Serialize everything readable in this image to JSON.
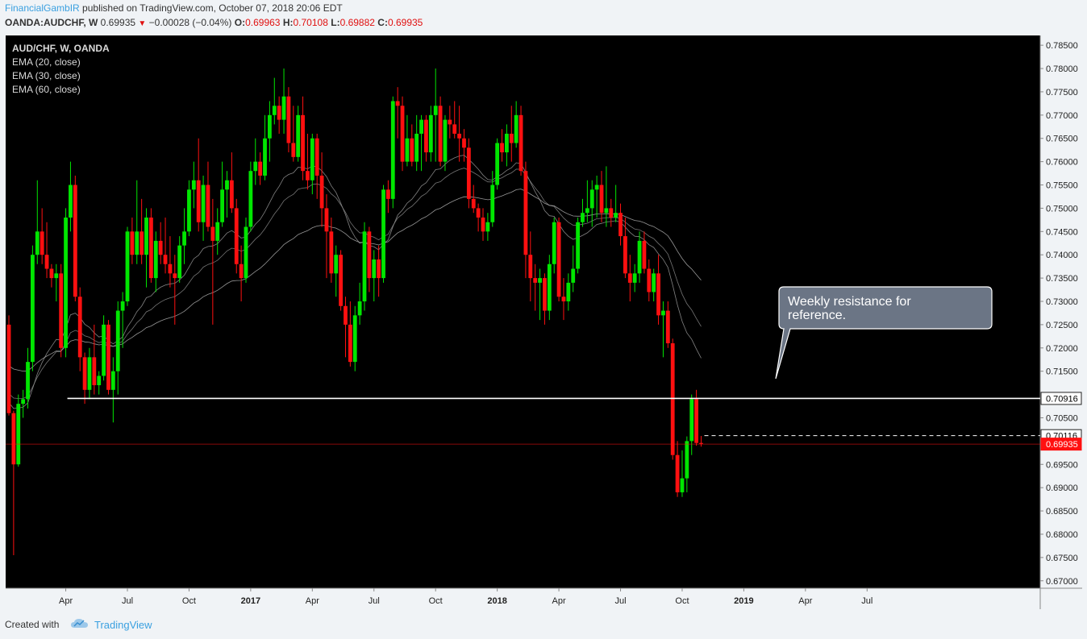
{
  "header": {
    "author": "FinancialGambIR",
    "published_text": "published on TradingView.com, October 07, 2018 20:06 EDT",
    "symbol": "OANDA:AUDCHF, W",
    "price": "0.69935",
    "change_arrow": "▼",
    "change": "−0.00028 (−0.04%)",
    "open_label": "O:",
    "open": "0.69963",
    "high_label": "H:",
    "high": "0.70108",
    "low_label": "L:",
    "low": "0.69882",
    "close_label": "C:",
    "close": "0.69935"
  },
  "legend": {
    "title": "AUD/CHF, W, OANDA",
    "ema20": "EMA (20, close)",
    "ema30": "EMA (30, close)",
    "ema60": "EMA (60, close)"
  },
  "annotation": {
    "text_line1": "Weekly resistance for",
    "text_line2": "reference."
  },
  "footer": {
    "created_with": "Created with",
    "brand": "TradingView"
  },
  "colors": {
    "bull": "#00e600",
    "bear": "#ff1010",
    "background": "#000000",
    "axis_bg": "#f0f3f6",
    "resistance": "#ffffff",
    "current_price": "#ff1010",
    "author": "#3aa0e0"
  },
  "chart_data": {
    "type": "candlestick",
    "title": "AUD/CHF, W, OANDA",
    "ylim": [
      0.6675,
      0.7875
    ],
    "y_ticks": [
      "0.78500",
      "0.78000",
      "0.77500",
      "0.77000",
      "0.76500",
      "0.76000",
      "0.75500",
      "0.75000",
      "0.74500",
      "0.74000",
      "0.73500",
      "0.73000",
      "0.72500",
      "0.72000",
      "0.71500",
      "0.70500",
      "0.69500",
      "0.69000",
      "0.68500",
      "0.68000",
      "0.67500",
      "0.67000"
    ],
    "x_ticks": [
      {
        "label": "Apr",
        "week": 12,
        "bold": false
      },
      {
        "label": "Jul",
        "week": 25,
        "bold": false
      },
      {
        "label": "Oct",
        "week": 38,
        "bold": false
      },
      {
        "label": "2017",
        "week": 51,
        "bold": true
      },
      {
        "label": "Apr",
        "week": 64,
        "bold": false
      },
      {
        "label": "Jul",
        "week": 77,
        "bold": false
      },
      {
        "label": "Oct",
        "week": 90,
        "bold": false
      },
      {
        "label": "2018",
        "week": 103,
        "bold": true
      },
      {
        "label": "Apr",
        "week": 116,
        "bold": false
      },
      {
        "label": "Jul",
        "week": 129,
        "bold": false
      },
      {
        "label": "Oct",
        "week": 142,
        "bold": false
      },
      {
        "label": "2019",
        "week": 155,
        "bold": true
      },
      {
        "label": "Apr",
        "week": 168,
        "bold": false
      },
      {
        "label": "Jul",
        "week": 181,
        "bold": false
      }
    ],
    "week_count": 187,
    "resistance": {
      "value": 0.70916,
      "label": "0.70916",
      "start_week": 12
    },
    "high_marker": {
      "value": 0.70116,
      "label": "0.70116"
    },
    "current": {
      "value": 0.69935,
      "label": "0.69935"
    },
    "candles": [
      {
        "o": 0.725,
        "h": 0.727,
        "l": 0.7055,
        "c": 0.706
      },
      {
        "o": 0.706,
        "h": 0.7065,
        "l": 0.6755,
        "c": 0.695
      },
      {
        "o": 0.695,
        "h": 0.71,
        "l": 0.6945,
        "c": 0.708
      },
      {
        "o": 0.708,
        "h": 0.711,
        "l": 0.705,
        "c": 0.709
      },
      {
        "o": 0.709,
        "h": 0.72,
        "l": 0.707,
        "c": 0.717
      },
      {
        "o": 0.717,
        "h": 0.742,
        "l": 0.715,
        "c": 0.74
      },
      {
        "o": 0.74,
        "h": 0.756,
        "l": 0.738,
        "c": 0.745
      },
      {
        "o": 0.745,
        "h": 0.75,
        "l": 0.738,
        "c": 0.74
      },
      {
        "o": 0.74,
        "h": 0.747,
        "l": 0.735,
        "c": 0.737
      },
      {
        "o": 0.737,
        "h": 0.738,
        "l": 0.733,
        "c": 0.735
      },
      {
        "o": 0.735,
        "h": 0.738,
        "l": 0.73,
        "c": 0.736
      },
      {
        "o": 0.736,
        "h": 0.738,
        "l": 0.718,
        "c": 0.72
      },
      {
        "o": 0.72,
        "h": 0.75,
        "l": 0.718,
        "c": 0.748
      },
      {
        "o": 0.748,
        "h": 0.76,
        "l": 0.745,
        "c": 0.755
      },
      {
        "o": 0.755,
        "h": 0.757,
        "l": 0.73,
        "c": 0.731
      },
      {
        "o": 0.731,
        "h": 0.733,
        "l": 0.715,
        "c": 0.718
      },
      {
        "o": 0.718,
        "h": 0.719,
        "l": 0.708,
        "c": 0.711
      },
      {
        "o": 0.711,
        "h": 0.72,
        "l": 0.709,
        "c": 0.718
      },
      {
        "o": 0.718,
        "h": 0.725,
        "l": 0.71,
        "c": 0.712
      },
      {
        "o": 0.712,
        "h": 0.715,
        "l": 0.71,
        "c": 0.714
      },
      {
        "o": 0.714,
        "h": 0.727,
        "l": 0.713,
        "c": 0.725
      },
      {
        "o": 0.725,
        "h": 0.726,
        "l": 0.71,
        "c": 0.711
      },
      {
        "o": 0.711,
        "h": 0.718,
        "l": 0.704,
        "c": 0.715
      },
      {
        "o": 0.715,
        "h": 0.73,
        "l": 0.71,
        "c": 0.728
      },
      {
        "o": 0.728,
        "h": 0.732,
        "l": 0.72,
        "c": 0.73
      },
      {
        "o": 0.73,
        "h": 0.746,
        "l": 0.729,
        "c": 0.745
      },
      {
        "o": 0.745,
        "h": 0.748,
        "l": 0.738,
        "c": 0.74
      },
      {
        "o": 0.74,
        "h": 0.756,
        "l": 0.738,
        "c": 0.745
      },
      {
        "o": 0.745,
        "h": 0.752,
        "l": 0.738,
        "c": 0.74
      },
      {
        "o": 0.74,
        "h": 0.75,
        "l": 0.733,
        "c": 0.748
      },
      {
        "o": 0.748,
        "h": 0.75,
        "l": 0.734,
        "c": 0.735
      },
      {
        "o": 0.735,
        "h": 0.745,
        "l": 0.732,
        "c": 0.743
      },
      {
        "o": 0.743,
        "h": 0.747,
        "l": 0.738,
        "c": 0.74
      },
      {
        "o": 0.74,
        "h": 0.748,
        "l": 0.736,
        "c": 0.738
      },
      {
        "o": 0.738,
        "h": 0.744,
        "l": 0.733,
        "c": 0.736
      },
      {
        "o": 0.736,
        "h": 0.74,
        "l": 0.725,
        "c": 0.735
      },
      {
        "o": 0.735,
        "h": 0.744,
        "l": 0.734,
        "c": 0.742
      },
      {
        "o": 0.742,
        "h": 0.75,
        "l": 0.738,
        "c": 0.745
      },
      {
        "o": 0.745,
        "h": 0.756,
        "l": 0.744,
        "c": 0.754
      },
      {
        "o": 0.754,
        "h": 0.76,
        "l": 0.75,
        "c": 0.756
      },
      {
        "o": 0.756,
        "h": 0.765,
        "l": 0.745,
        "c": 0.747
      },
      {
        "o": 0.747,
        "h": 0.757,
        "l": 0.743,
        "c": 0.755
      },
      {
        "o": 0.755,
        "h": 0.76,
        "l": 0.745,
        "c": 0.746
      },
      {
        "o": 0.746,
        "h": 0.752,
        "l": 0.725,
        "c": 0.743
      },
      {
        "o": 0.743,
        "h": 0.75,
        "l": 0.74,
        "c": 0.747
      },
      {
        "o": 0.747,
        "h": 0.76,
        "l": 0.746,
        "c": 0.754
      },
      {
        "o": 0.754,
        "h": 0.758,
        "l": 0.748,
        "c": 0.756
      },
      {
        "o": 0.756,
        "h": 0.762,
        "l": 0.749,
        "c": 0.75
      },
      {
        "o": 0.75,
        "h": 0.752,
        "l": 0.736,
        "c": 0.738
      },
      {
        "o": 0.738,
        "h": 0.742,
        "l": 0.73,
        "c": 0.735
      },
      {
        "o": 0.735,
        "h": 0.748,
        "l": 0.734,
        "c": 0.746
      },
      {
        "o": 0.746,
        "h": 0.76,
        "l": 0.745,
        "c": 0.758
      },
      {
        "o": 0.758,
        "h": 0.765,
        "l": 0.755,
        "c": 0.76
      },
      {
        "o": 0.76,
        "h": 0.762,
        "l": 0.755,
        "c": 0.757
      },
      {
        "o": 0.757,
        "h": 0.77,
        "l": 0.756,
        "c": 0.765
      },
      {
        "o": 0.765,
        "h": 0.773,
        "l": 0.76,
        "c": 0.77
      },
      {
        "o": 0.77,
        "h": 0.778,
        "l": 0.768,
        "c": 0.772
      },
      {
        "o": 0.772,
        "h": 0.774,
        "l": 0.766,
        "c": 0.769
      },
      {
        "o": 0.769,
        "h": 0.78,
        "l": 0.766,
        "c": 0.774
      },
      {
        "o": 0.774,
        "h": 0.776,
        "l": 0.762,
        "c": 0.764
      },
      {
        "o": 0.764,
        "h": 0.772,
        "l": 0.76,
        "c": 0.761
      },
      {
        "o": 0.761,
        "h": 0.772,
        "l": 0.76,
        "c": 0.77
      },
      {
        "o": 0.77,
        "h": 0.774,
        "l": 0.756,
        "c": 0.758
      },
      {
        "o": 0.758,
        "h": 0.766,
        "l": 0.754,
        "c": 0.756
      },
      {
        "o": 0.756,
        "h": 0.766,
        "l": 0.753,
        "c": 0.765
      },
      {
        "o": 0.765,
        "h": 0.766,
        "l": 0.752,
        "c": 0.757
      },
      {
        "o": 0.757,
        "h": 0.762,
        "l": 0.746,
        "c": 0.75
      },
      {
        "o": 0.75,
        "h": 0.753,
        "l": 0.735,
        "c": 0.745
      },
      {
        "o": 0.745,
        "h": 0.748,
        "l": 0.734,
        "c": 0.736
      },
      {
        "o": 0.736,
        "h": 0.742,
        "l": 0.731,
        "c": 0.74
      },
      {
        "o": 0.74,
        "h": 0.741,
        "l": 0.728,
        "c": 0.729
      },
      {
        "o": 0.729,
        "h": 0.731,
        "l": 0.718,
        "c": 0.725
      },
      {
        "o": 0.725,
        "h": 0.73,
        "l": 0.716,
        "c": 0.717
      },
      {
        "o": 0.717,
        "h": 0.729,
        "l": 0.715,
        "c": 0.727
      },
      {
        "o": 0.727,
        "h": 0.734,
        "l": 0.725,
        "c": 0.73
      },
      {
        "o": 0.73,
        "h": 0.747,
        "l": 0.728,
        "c": 0.745
      },
      {
        "o": 0.745,
        "h": 0.746,
        "l": 0.732,
        "c": 0.735
      },
      {
        "o": 0.735,
        "h": 0.741,
        "l": 0.73,
        "c": 0.739
      },
      {
        "o": 0.739,
        "h": 0.742,
        "l": 0.731,
        "c": 0.735
      },
      {
        "o": 0.735,
        "h": 0.755,
        "l": 0.734,
        "c": 0.754
      },
      {
        "o": 0.754,
        "h": 0.756,
        "l": 0.749,
        "c": 0.752
      },
      {
        "o": 0.752,
        "h": 0.774,
        "l": 0.75,
        "c": 0.773
      },
      {
        "o": 0.773,
        "h": 0.776,
        "l": 0.765,
        "c": 0.772
      },
      {
        "o": 0.772,
        "h": 0.774,
        "l": 0.758,
        "c": 0.76
      },
      {
        "o": 0.76,
        "h": 0.77,
        "l": 0.759,
        "c": 0.765
      },
      {
        "o": 0.765,
        "h": 0.768,
        "l": 0.759,
        "c": 0.76
      },
      {
        "o": 0.76,
        "h": 0.77,
        "l": 0.758,
        "c": 0.766
      },
      {
        "o": 0.766,
        "h": 0.77,
        "l": 0.758,
        "c": 0.769
      },
      {
        "o": 0.769,
        "h": 0.77,
        "l": 0.76,
        "c": 0.762
      },
      {
        "o": 0.762,
        "h": 0.772,
        "l": 0.76,
        "c": 0.77
      },
      {
        "o": 0.77,
        "h": 0.78,
        "l": 0.76,
        "c": 0.772
      },
      {
        "o": 0.772,
        "h": 0.774,
        "l": 0.759,
        "c": 0.76
      },
      {
        "o": 0.76,
        "h": 0.77,
        "l": 0.758,
        "c": 0.769
      },
      {
        "o": 0.769,
        "h": 0.772,
        "l": 0.765,
        "c": 0.768
      },
      {
        "o": 0.768,
        "h": 0.773,
        "l": 0.765,
        "c": 0.766
      },
      {
        "o": 0.766,
        "h": 0.772,
        "l": 0.76,
        "c": 0.765
      },
      {
        "o": 0.765,
        "h": 0.767,
        "l": 0.76,
        "c": 0.763
      },
      {
        "o": 0.763,
        "h": 0.765,
        "l": 0.75,
        "c": 0.752
      },
      {
        "o": 0.752,
        "h": 0.755,
        "l": 0.749,
        "c": 0.75
      },
      {
        "o": 0.75,
        "h": 0.751,
        "l": 0.745,
        "c": 0.748
      },
      {
        "o": 0.748,
        "h": 0.75,
        "l": 0.743,
        "c": 0.745
      },
      {
        "o": 0.745,
        "h": 0.749,
        "l": 0.743,
        "c": 0.747
      },
      {
        "o": 0.747,
        "h": 0.758,
        "l": 0.746,
        "c": 0.755
      },
      {
        "o": 0.755,
        "h": 0.765,
        "l": 0.754,
        "c": 0.764
      },
      {
        "o": 0.764,
        "h": 0.767,
        "l": 0.76,
        "c": 0.762
      },
      {
        "o": 0.762,
        "h": 0.768,
        "l": 0.759,
        "c": 0.766
      },
      {
        "o": 0.766,
        "h": 0.772,
        "l": 0.76,
        "c": 0.764
      },
      {
        "o": 0.764,
        "h": 0.773,
        "l": 0.763,
        "c": 0.77
      },
      {
        "o": 0.77,
        "h": 0.772,
        "l": 0.757,
        "c": 0.758
      },
      {
        "o": 0.758,
        "h": 0.76,
        "l": 0.735,
        "c": 0.74
      },
      {
        "o": 0.74,
        "h": 0.745,
        "l": 0.73,
        "c": 0.735
      },
      {
        "o": 0.735,
        "h": 0.738,
        "l": 0.728,
        "c": 0.734
      },
      {
        "o": 0.734,
        "h": 0.737,
        "l": 0.726,
        "c": 0.735
      },
      {
        "o": 0.735,
        "h": 0.736,
        "l": 0.725,
        "c": 0.728
      },
      {
        "o": 0.728,
        "h": 0.74,
        "l": 0.726,
        "c": 0.738
      },
      {
        "o": 0.738,
        "h": 0.748,
        "l": 0.736,
        "c": 0.747
      },
      {
        "o": 0.747,
        "h": 0.748,
        "l": 0.73,
        "c": 0.731
      },
      {
        "o": 0.731,
        "h": 0.735,
        "l": 0.726,
        "c": 0.73
      },
      {
        "o": 0.73,
        "h": 0.736,
        "l": 0.728,
        "c": 0.734
      },
      {
        "o": 0.734,
        "h": 0.742,
        "l": 0.732,
        "c": 0.737
      },
      {
        "o": 0.737,
        "h": 0.748,
        "l": 0.736,
        "c": 0.747
      },
      {
        "o": 0.747,
        "h": 0.752,
        "l": 0.746,
        "c": 0.749
      },
      {
        "o": 0.749,
        "h": 0.756,
        "l": 0.747,
        "c": 0.75
      },
      {
        "o": 0.75,
        "h": 0.756,
        "l": 0.746,
        "c": 0.754
      },
      {
        "o": 0.754,
        "h": 0.757,
        "l": 0.748,
        "c": 0.755
      },
      {
        "o": 0.755,
        "h": 0.758,
        "l": 0.747,
        "c": 0.749
      },
      {
        "o": 0.749,
        "h": 0.759,
        "l": 0.746,
        "c": 0.75
      },
      {
        "o": 0.75,
        "h": 0.752,
        "l": 0.746,
        "c": 0.748
      },
      {
        "o": 0.748,
        "h": 0.755,
        "l": 0.747,
        "c": 0.749
      },
      {
        "o": 0.749,
        "h": 0.751,
        "l": 0.742,
        "c": 0.744
      },
      {
        "o": 0.744,
        "h": 0.748,
        "l": 0.735,
        "c": 0.736
      },
      {
        "o": 0.736,
        "h": 0.74,
        "l": 0.73,
        "c": 0.734
      },
      {
        "o": 0.734,
        "h": 0.738,
        "l": 0.732,
        "c": 0.736
      },
      {
        "o": 0.736,
        "h": 0.745,
        "l": 0.734,
        "c": 0.743
      },
      {
        "o": 0.743,
        "h": 0.745,
        "l": 0.736,
        "c": 0.737
      },
      {
        "o": 0.737,
        "h": 0.739,
        "l": 0.73,
        "c": 0.732
      },
      {
        "o": 0.732,
        "h": 0.737,
        "l": 0.73,
        "c": 0.736
      },
      {
        "o": 0.736,
        "h": 0.74,
        "l": 0.725,
        "c": 0.727
      },
      {
        "o": 0.727,
        "h": 0.73,
        "l": 0.718,
        "c": 0.728
      },
      {
        "o": 0.728,
        "h": 0.73,
        "l": 0.72,
        "c": 0.721
      },
      {
        "o": 0.721,
        "h": 0.722,
        "l": 0.696,
        "c": 0.697
      },
      {
        "o": 0.697,
        "h": 0.7,
        "l": 0.688,
        "c": 0.689
      },
      {
        "o": 0.689,
        "h": 0.698,
        "l": 0.688,
        "c": 0.692
      },
      {
        "o": 0.692,
        "h": 0.701,
        "l": 0.689,
        "c": 0.7
      },
      {
        "o": 0.7,
        "h": 0.71,
        "l": 0.697,
        "c": 0.709
      },
      {
        "o": 0.709,
        "h": 0.711,
        "l": 0.699,
        "c": 0.6996
      },
      {
        "o": 0.6996,
        "h": 0.7011,
        "l": 0.6988,
        "c": 0.6994
      }
    ]
  }
}
